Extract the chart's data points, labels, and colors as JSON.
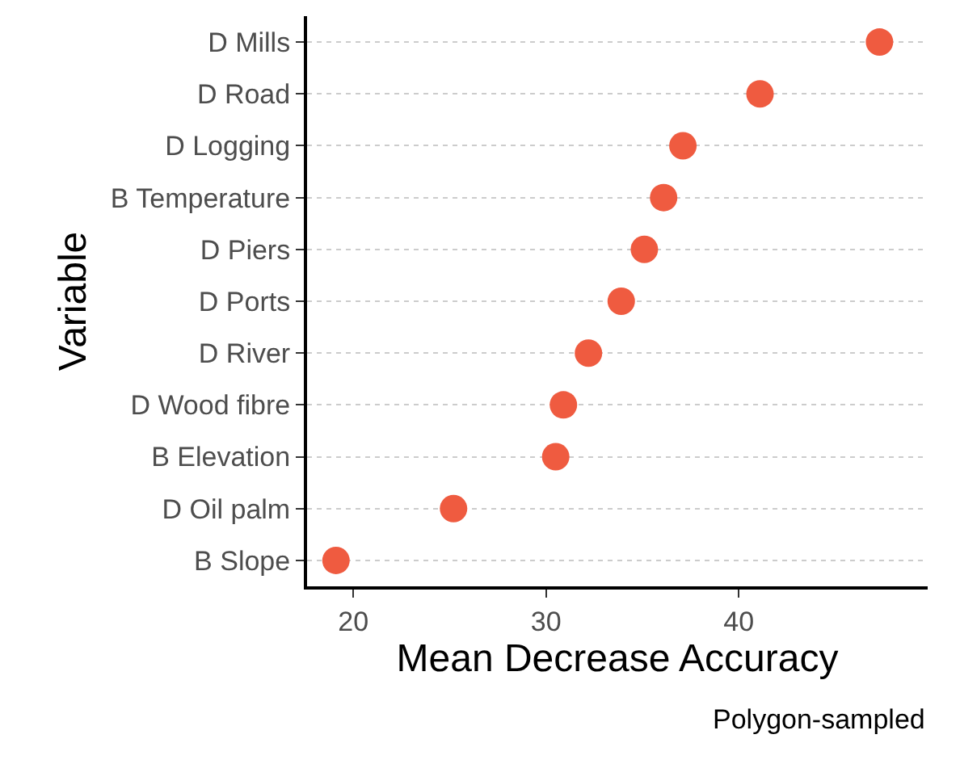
{
  "chart_data": {
    "type": "scatter",
    "orientation": "horizontal",
    "categories": [
      "D Mills",
      "D Road",
      "D Logging",
      "B Temperature",
      "D Piers",
      "D Ports",
      "D River",
      "D Wood fibre",
      "B Elevation",
      "D Oil palm",
      "B Slope"
    ],
    "values": [
      47.3,
      41.1,
      37.1,
      36.1,
      35.1,
      33.9,
      32.2,
      30.9,
      30.5,
      25.2,
      19.1
    ],
    "color": "#ef5b40",
    "marker": "circle",
    "xlim": [
      17.6,
      49.8
    ],
    "xticks": [
      20,
      30,
      40
    ],
    "grid": "y",
    "legend": false,
    "xlabel": "Mean Decrease Accuracy",
    "ylabel": "Variable",
    "annotations": [
      "Polygon-sampled"
    ]
  }
}
